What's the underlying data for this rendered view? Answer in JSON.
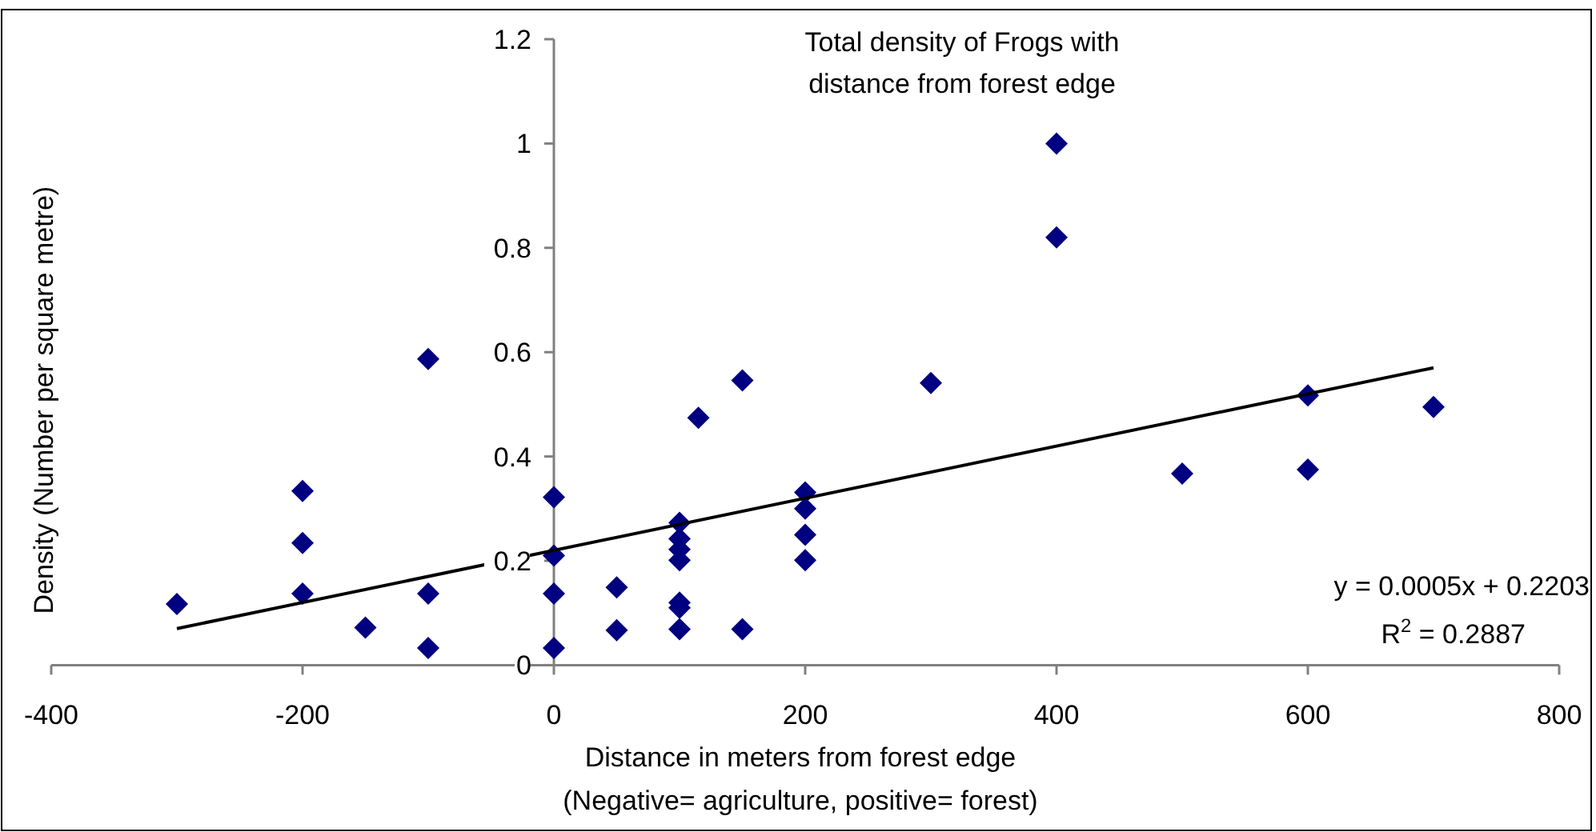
{
  "chart_data": {
    "type": "scatter",
    "title": "Total density of Frogs with\ndistance from forest edge",
    "xlabel": "Distance in meters from forest edge\n(Negative= agriculture, positive= forest)",
    "ylabel": "Density (Number per square metre)",
    "xlim": [
      -400,
      800
    ],
    "xticks": [
      -400,
      -200,
      0,
      200,
      400,
      600,
      800
    ],
    "ylim": [
      0,
      1.2
    ],
    "yticks": [
      0,
      0.2,
      0.4,
      0.6,
      0.8,
      1,
      1.2
    ],
    "grid": false,
    "marker": "diamond",
    "series": [
      {
        "color": "#000080",
        "x": [
          -300,
          -200,
          -200,
          -200,
          -150,
          -100,
          -100,
          -100,
          0,
          0,
          0,
          0,
          50,
          50,
          100,
          100,
          100,
          100,
          100,
          100,
          100,
          115,
          150,
          150,
          200,
          200,
          200,
          200,
          300,
          400,
          400,
          500,
          600,
          600,
          700
        ],
        "values": [
          0.117,
          0.334,
          0.234,
          0.137,
          0.072,
          0.587,
          0.137,
          0.033,
          0.322,
          0.21,
          0.137,
          0.033,
          0.149,
          0.067,
          0.273,
          0.242,
          0.222,
          0.201,
          0.12,
          0.11,
          0.069,
          0.474,
          0.546,
          0.069,
          0.331,
          0.3,
          0.25,
          0.201,
          0.541,
          1.0,
          0.82,
          0.367,
          0.517,
          0.375,
          0.495
        ]
      },
      {
        "type": "line",
        "color": "#000000",
        "x": [
          -300,
          700
        ],
        "values": [
          0.07,
          0.57
        ],
        "marker": "none",
        "line_style": "solid"
      }
    ],
    "annotations": [
      "y = 0.0005x + 0.2203",
      "R$^{2}$ = 0.2887"
    ]
  }
}
